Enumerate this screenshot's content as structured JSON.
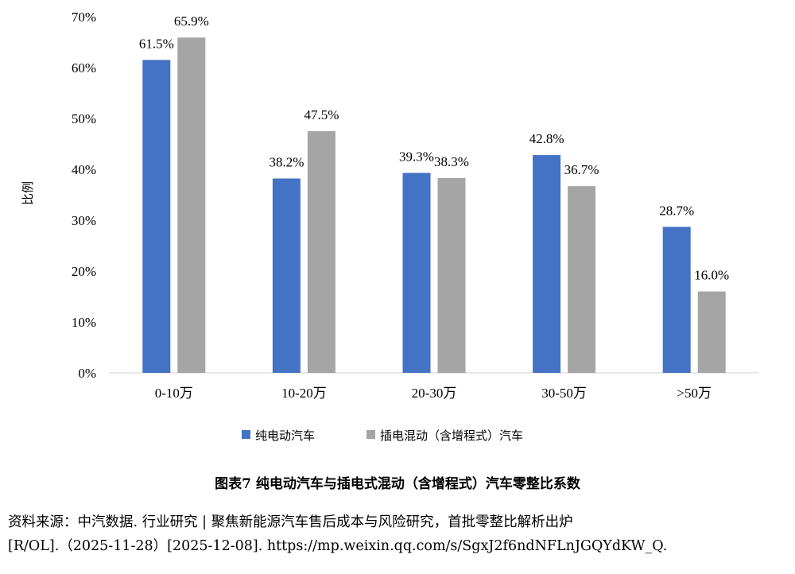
{
  "chart_data": {
    "type": "bar",
    "categories": [
      "0-10万",
      "10-20万",
      "20-30万",
      "30-50万",
      ">50万"
    ],
    "series": [
      {
        "name": "纯电动汽车",
        "color": "#4472C4",
        "values": [
          61.5,
          38.2,
          39.3,
          42.8,
          28.7
        ]
      },
      {
        "name": "插电混动（含增程式）汽车",
        "color": "#A5A5A5",
        "values": [
          65.9,
          47.5,
          38.3,
          36.7,
          16.0
        ]
      }
    ],
    "data_labels": [
      [
        "61.5%",
        "38.2%",
        "39.3%",
        "42.8%",
        "28.7%"
      ],
      [
        "65.9%",
        "47.5%",
        "38.3%",
        "36.7%",
        "16.0%"
      ]
    ],
    "y_ticks": [
      "0%",
      "10%",
      "20%",
      "30%",
      "40%",
      "50%",
      "60%",
      "70%"
    ],
    "ylim": [
      0,
      70
    ],
    "ylabel": "比例",
    "xlabel": "",
    "title": "",
    "grid": false,
    "legend_position": "bottom"
  },
  "caption": "图表7 纯电动汽车与插电式混动（含增程式）汽车零整比系数",
  "source": {
    "line1": "资料来源：中汽数据. 行业研究 | 聚焦新能源汽车售后成本与风险研究，首批零整比解析出炉",
    "line2": "[R/OL].（2025-11-28）[2025-12-08]. https://mp.weixin.qq.com/s/SgxJ2f6ndNFLnJGQYdKW_Q."
  }
}
